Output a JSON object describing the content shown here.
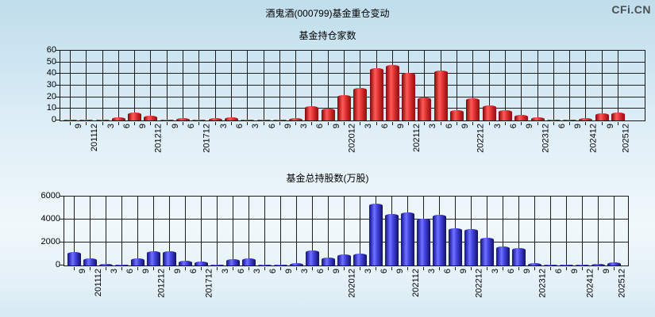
{
  "header": {
    "title": "酒鬼酒(000799)基金重仓变动",
    "logo": "CFi.CN"
  },
  "colors": {
    "funds_bar": "#ea3c3c",
    "shares_bar": "#4b4be8",
    "grid": "#1f1f1f",
    "background_top": "#c0ddeb"
  },
  "chart_data": [
    {
      "type": "bar",
      "title": "基金持仓家数",
      "categories": [
        "9",
        "201112",
        "3",
        "6",
        "9",
        "201212",
        "9",
        "6",
        "201712",
        "3",
        "6",
        "3",
        "6",
        "9",
        "3",
        "6",
        "9",
        "202012",
        "3",
        "6",
        "9",
        "202112",
        "3",
        "6",
        "9",
        "202212",
        "3",
        "6",
        "9",
        "202312",
        "6",
        "9",
        "202412",
        "9",
        "202512"
      ],
      "values": [
        1,
        1,
        1,
        3,
        7,
        4,
        1,
        2,
        1,
        2,
        3,
        1,
        1,
        1,
        2,
        12,
        10,
        22,
        28,
        45,
        48,
        41,
        20,
        43,
        9,
        19,
        13,
        9,
        5,
        3,
        1,
        1,
        2,
        6,
        7
      ],
      "xlabel": "",
      "ylabel": "",
      "ylim": [
        0,
        60
      ],
      "yticks": [
        0,
        10,
        20,
        30,
        40,
        50,
        60
      ],
      "grid": "on",
      "legend": "none",
      "bar_style": "red-cylinder"
    },
    {
      "type": "bar",
      "title": "基金总持股数(万股)",
      "categories": [
        "9",
        "201112",
        "3",
        "6",
        "9",
        "201212",
        "9",
        "6",
        "201712",
        "3",
        "6",
        "3",
        "6",
        "9",
        "3",
        "6",
        "9",
        "202012",
        "3",
        "6",
        "9",
        "202112",
        "3",
        "6",
        "9",
        "202212",
        "3",
        "6",
        "9",
        "202312",
        "6",
        "9",
        "202412",
        "9",
        "202512"
      ],
      "values": [
        1150,
        650,
        150,
        50,
        650,
        1250,
        1250,
        400,
        330,
        80,
        550,
        650,
        60,
        60,
        200,
        1300,
        700,
        950,
        1000,
        5350,
        4500,
        4650,
        4050,
        4400,
        3250,
        3200,
        2400,
        1650,
        1500,
        200,
        70,
        80,
        100,
        150,
        250
      ],
      "xlabel": "",
      "ylabel": "",
      "ylim": [
        0,
        6000
      ],
      "yticks": [
        0,
        2000,
        4000,
        6000
      ],
      "grid": "on",
      "legend": "none",
      "bar_style": "blue-cylinder"
    }
  ]
}
